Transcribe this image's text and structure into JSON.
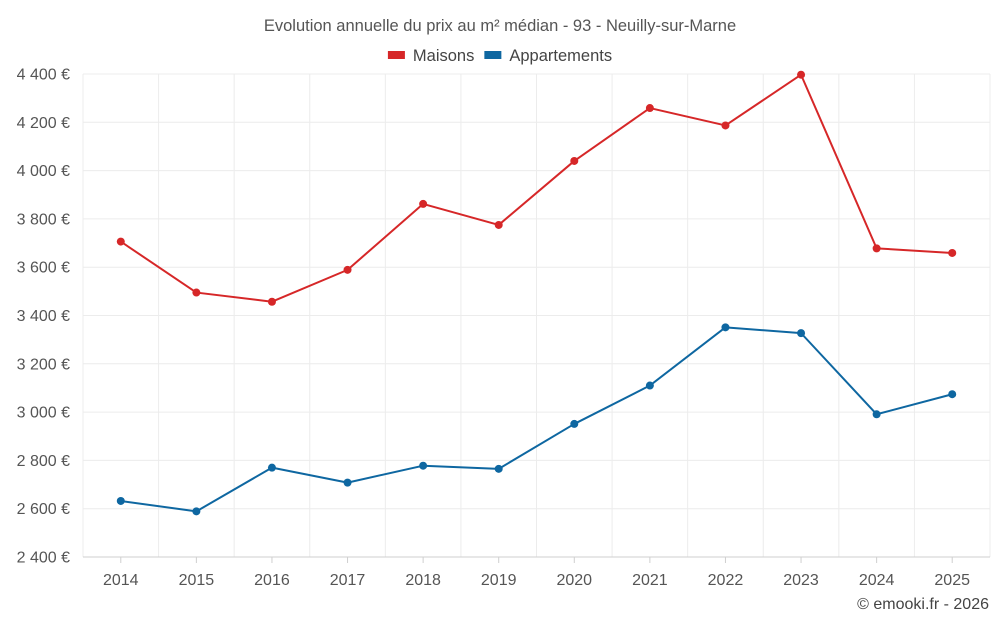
{
  "chart_data": {
    "type": "line",
    "title": "Evolution annuelle du prix au m² médian - 93 - Neuilly-sur-Marne",
    "categories": [
      "2014",
      "2015",
      "2016",
      "2017",
      "2018",
      "2019",
      "2020",
      "2021",
      "2022",
      "2023",
      "2024",
      "2025"
    ],
    "series": [
      {
        "name": "Maisons",
        "color": "#d62728",
        "values": [
          3706,
          3495,
          3457,
          3589,
          3862,
          3775,
          4040,
          4259,
          4187,
          4397,
          3678,
          3659
        ]
      },
      {
        "name": "Appartements",
        "color": "#0e67a1",
        "values": [
          2632,
          2589,
          2770,
          2708,
          2778,
          2765,
          2951,
          3110,
          3351,
          3327,
          2991,
          3074
        ]
      }
    ],
    "ylim": [
      2400,
      4400
    ],
    "yticks": [
      2400,
      2600,
      2800,
      3000,
      3200,
      3400,
      3600,
      3800,
      4000,
      4200,
      4400
    ],
    "ytick_labels": [
      "2 400 €",
      "2 600 €",
      "2 800 €",
      "3 000 €",
      "3 200 €",
      "3 400 €",
      "3 600 €",
      "3 800 €",
      "4 000 €",
      "4 200 €",
      "4 400 €"
    ],
    "xlabel": "",
    "ylabel": "",
    "grid": true,
    "legend_position": "top-center",
    "credit": "© emooki.fr - 2026"
  }
}
